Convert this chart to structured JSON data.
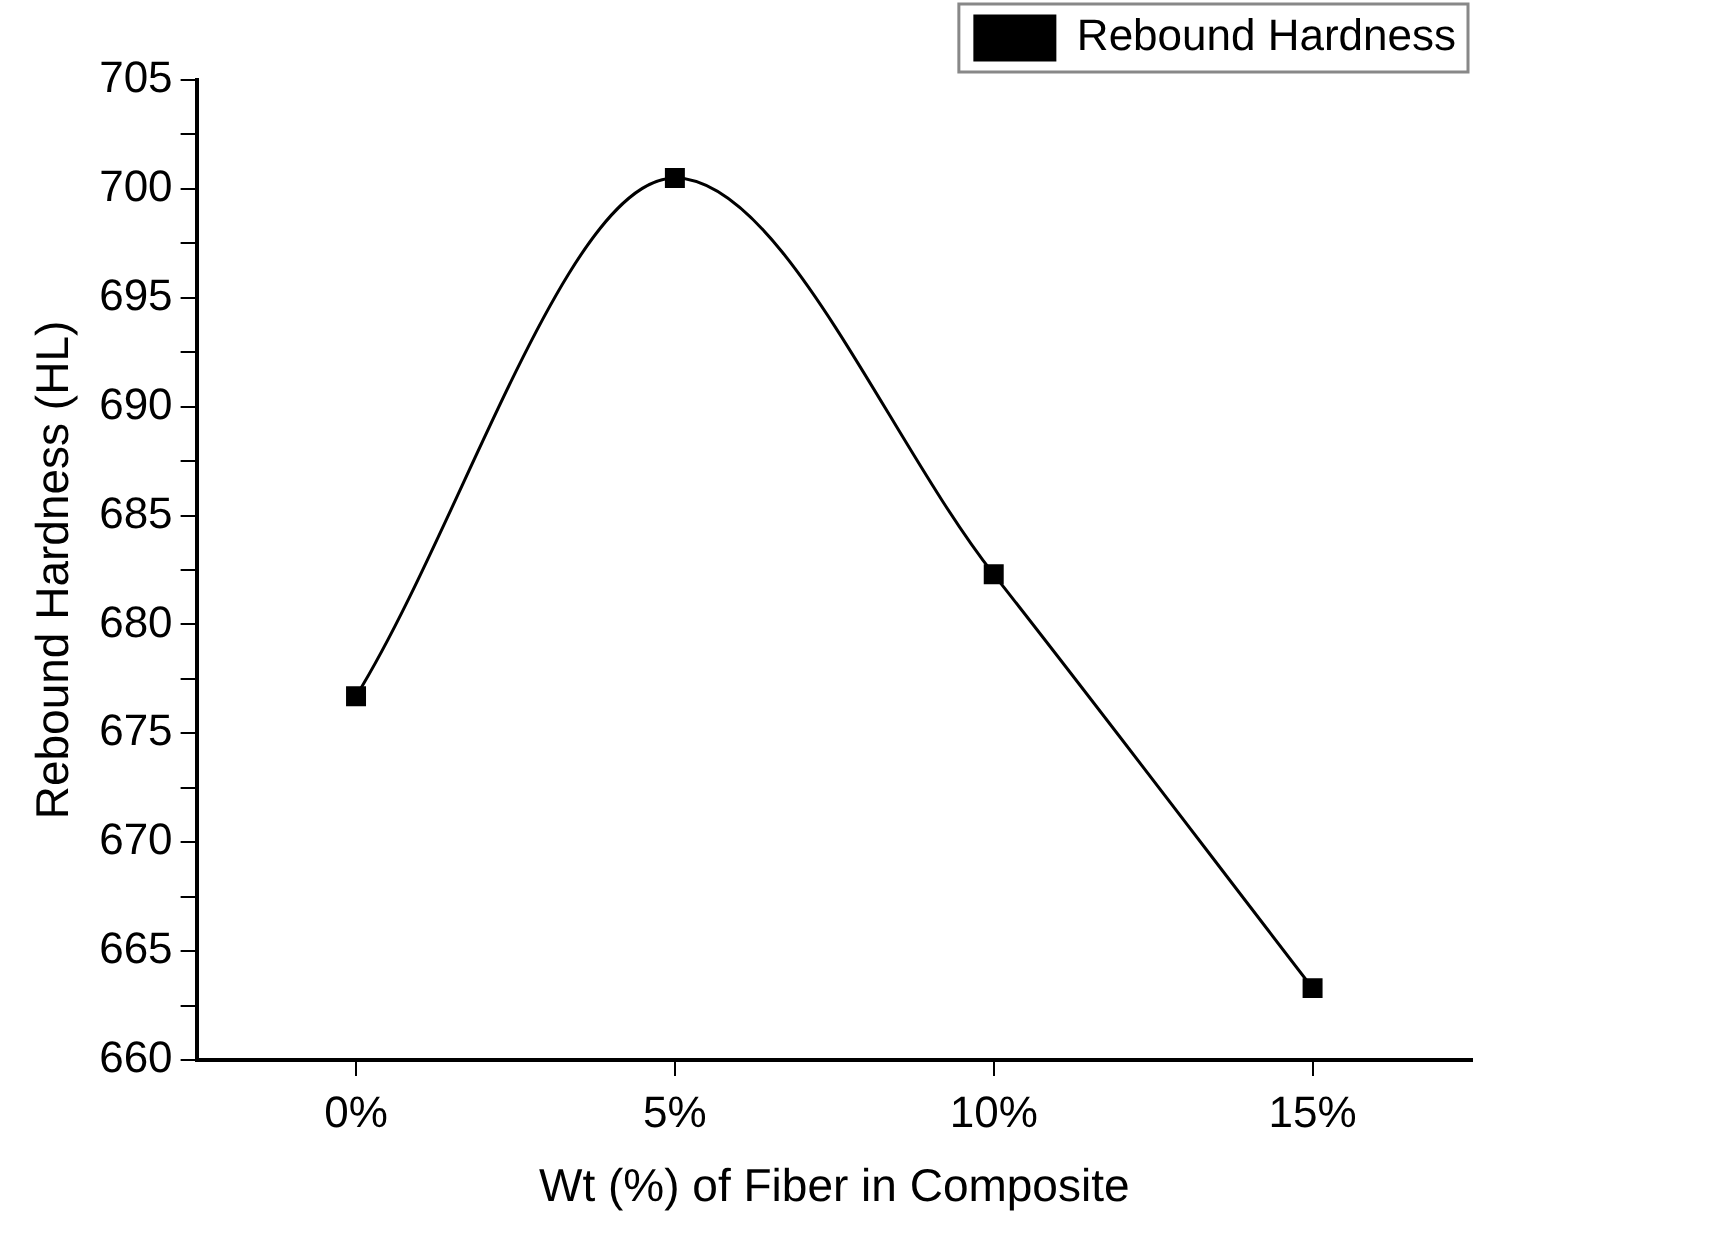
{
  "chart_data": {
    "type": "line",
    "xlabel": "Wt (%) of Fiber in Composite",
    "ylabel": "Rebound Hardness (HL)",
    "categories": [
      "0%",
      "5%",
      "10%",
      "15%"
    ],
    "series": [
      {
        "name": "Rebound Hardness",
        "color": "#000000",
        "values": [
          676.7,
          700.5,
          682.3,
          663.3
        ]
      }
    ],
    "ylim": [
      660,
      705
    ],
    "yticks": [
      660,
      {
        "value": 662.5,
        "label": null
      },
      665,
      {
        "value": 667.5,
        "label": null
      },
      670,
      {
        "value": 672.5,
        "label": null
      },
      675,
      {
        "value": 677.5,
        "label": null
      },
      680,
      {
        "value": 682.5,
        "label": null
      },
      685,
      {
        "value": 687.5,
        "label": null
      },
      690,
      {
        "value": 692.5,
        "label": null
      },
      695,
      {
        "value": 697.5,
        "label": null
      },
      700,
      {
        "value": 702.5,
        "label": null
      },
      705
    ],
    "grid": false,
    "legend": "top right",
    "marker": "square",
    "line_style": "solid"
  }
}
